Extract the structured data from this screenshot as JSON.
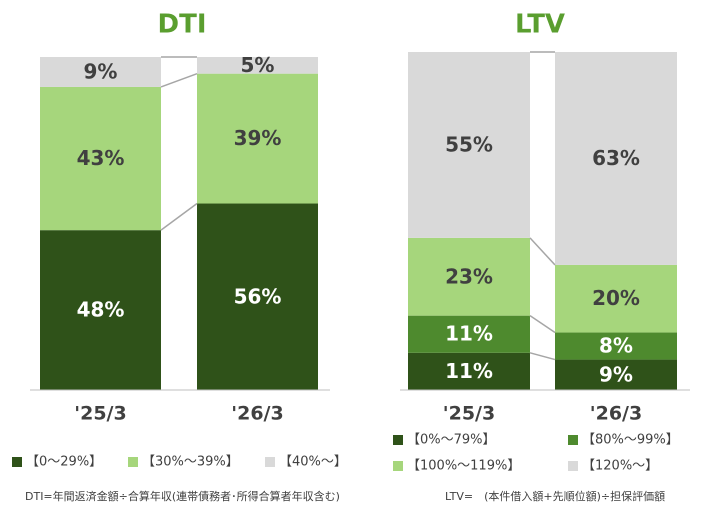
{
  "chart_data": [
    {
      "type": "bar",
      "stacked": true,
      "title": "DTI",
      "categories": [
        "'25/3",
        "'26/3"
      ],
      "series": [
        {
          "name": "【0～29%】",
          "color": "#2f5219",
          "values": [
            48,
            56
          ],
          "value_labels": [
            "48%",
            "56%"
          ]
        },
        {
          "name": "【30%～39%】",
          "color": "#a6d67c",
          "values": [
            43,
            39
          ],
          "value_labels": [
            "43%",
            "39%"
          ]
        },
        {
          "name": "【40%～】",
          "color": "#d9d9d9",
          "values": [
            9,
            5
          ],
          "value_labels": [
            "9%",
            "5%"
          ]
        }
      ],
      "ylim": [
        0,
        100
      ]
    },
    {
      "type": "bar",
      "stacked": true,
      "title": "LTV",
      "categories": [
        "'25/3",
        "'26/3"
      ],
      "series": [
        {
          "name": "【0%～79%】",
          "color": "#2f5219",
          "values": [
            11,
            9
          ],
          "value_labels": [
            "11%",
            "9%"
          ]
        },
        {
          "name": "【80%～99%】",
          "color": "#4e8a2e",
          "values": [
            11,
            8
          ],
          "value_labels": [
            "11%",
            "8%"
          ]
        },
        {
          "name": "【100%～119%】",
          "color": "#a6d67c",
          "values": [
            23,
            20
          ],
          "value_labels": [
            "23%",
            "20%"
          ]
        },
        {
          "name": "【120%～】",
          "color": "#d9d9d9",
          "values": [
            55,
            63
          ],
          "value_labels": [
            "55%",
            "63%"
          ]
        }
      ],
      "ylim": [
        0,
        100
      ]
    }
  ],
  "footnotes": [
    "DTI=年間返済金額÷合算年収(連帯債務者･所得合算者年収含む)",
    "LTV=　(本件借入額+先順位額)÷担保評価額"
  ]
}
